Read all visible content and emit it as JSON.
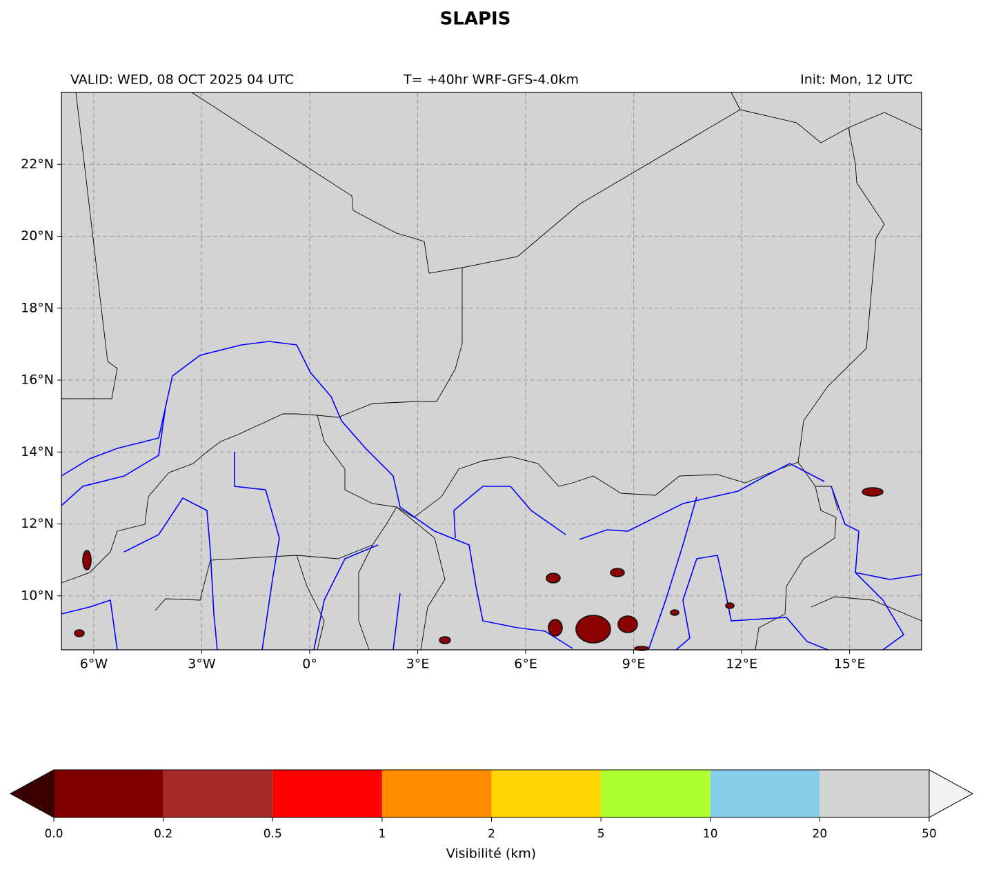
{
  "title": "SLAPIS",
  "valid": "VALID: WED, 08 OCT 2025 04 UTC",
  "run": "T= +40hr WRF-GFS-4.0km",
  "init": "Init: Mon, 12 UTC",
  "map": {
    "xlim": [
      -6.9,
      17
    ],
    "ylim": [
      8.5,
      24
    ],
    "xticks": [
      {
        "value": -6,
        "label": "6°W"
      },
      {
        "value": -3,
        "label": "3°W"
      },
      {
        "value": 0,
        "label": "0°"
      },
      {
        "value": 3,
        "label": "3°E"
      },
      {
        "value": 6,
        "label": "6°E"
      },
      {
        "value": 9,
        "label": "9°E"
      },
      {
        "value": 12,
        "label": "12°E"
      },
      {
        "value": 15,
        "label": "15°E"
      }
    ],
    "yticks": [
      {
        "value": 10,
        "label": "10°N"
      },
      {
        "value": 12,
        "label": "12°N"
      },
      {
        "value": 14,
        "label": "14°N"
      },
      {
        "value": 16,
        "label": "16°N"
      },
      {
        "value": 18,
        "label": "18°N"
      },
      {
        "value": 20,
        "label": "20°N"
      },
      {
        "value": 22,
        "label": "22°N"
      }
    ],
    "grid": true
  },
  "colorbar": {
    "label": "Visibilité (km)",
    "bounds": [
      {
        "value": 0,
        "label": "0.0"
      },
      0.2,
      0.5,
      1,
      2,
      5,
      10,
      20,
      50
    ],
    "colors": [
      "#800000",
      "#a52a2a",
      "#ff0000",
      "#ff8c00",
      "#ffd700",
      "#adff2f",
      "#87ceeb",
      "#d3d3d3"
    ],
    "under_color": "#3b0000",
    "over_color": "#f2f2f2"
  }
}
